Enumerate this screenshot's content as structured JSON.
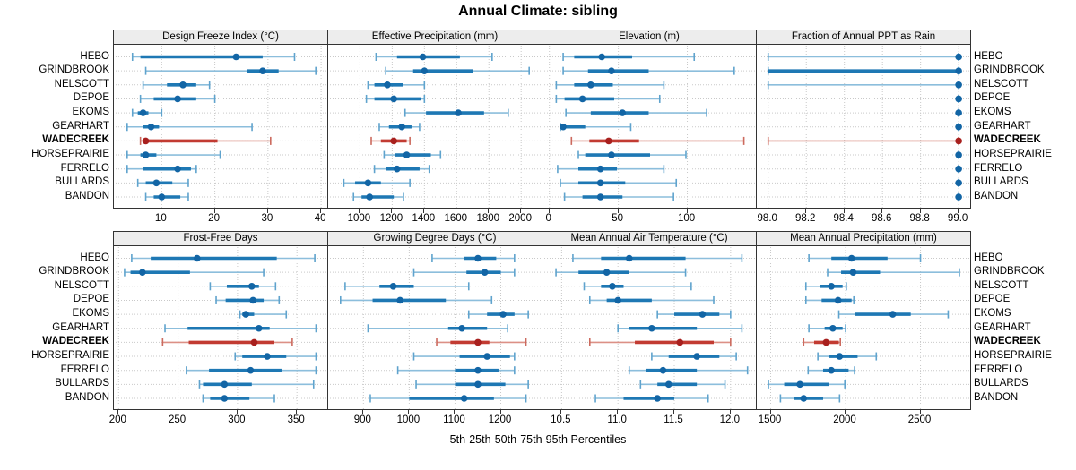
{
  "title": "Annual Climate: sibling",
  "caption": "5th-25th-50th-75th-95th Percentiles",
  "sites": [
    "HEBO",
    "GRINDBROOK",
    "NELSCOTT",
    "DEPOE",
    "EKOMS",
    "GEARHART",
    "WADECREEK",
    "HORSEPRAIRIE",
    "FERRELO",
    "BULLARDS",
    "BANDON"
  ],
  "highlighted_site": "WADECREEK",
  "percentiles": [
    5,
    25,
    50,
    75,
    95
  ],
  "colors": {
    "series_bar": "#1E78B4",
    "series_median": "#1265A5",
    "series_whisker": "#8CBEDC",
    "series_cap": "#5FA3CD",
    "highlight_bar": "#C23B32",
    "highlight_median": "#A8201E",
    "highlight_whisker": "#DC9086",
    "highlight_cap": "#CC6A5E",
    "grid": "#C9C9C9",
    "strip_bg": "#EDEDED",
    "border": "#333333"
  },
  "chart_data": [
    {
      "type": "interval",
      "row": 0,
      "col": 0,
      "title": "Design Freeze Index (°C)",
      "xlim": [
        1,
        41.5
      ],
      "ticks": [
        10,
        20,
        30,
        40
      ],
      "tick_labels": [
        "10",
        "20",
        "30",
        "40"
      ],
      "series": [
        {
          "name": "HEBO",
          "values": [
            4.5,
            6,
            24,
            29,
            35
          ]
        },
        {
          "name": "GRINDBROOK",
          "values": [
            7,
            26,
            29,
            32,
            39
          ]
        },
        {
          "name": "NELSCOTT",
          "values": [
            6.5,
            11,
            14,
            16.5,
            19
          ]
        },
        {
          "name": "DEPOE",
          "values": [
            6,
            8.5,
            13,
            16.5,
            20
          ]
        },
        {
          "name": "EKOMS",
          "values": [
            4.5,
            5.5,
            6.5,
            7.5,
            10
          ]
        },
        {
          "name": "GEARHART",
          "values": [
            3.5,
            6.5,
            8,
            9.5,
            27
          ]
        },
        {
          "name": "WADECREEK",
          "values": [
            6,
            6.5,
            7,
            20.5,
            30.5
          ]
        },
        {
          "name": "HORSEPRAIRIE",
          "values": [
            3.5,
            6,
            7,
            9,
            21
          ]
        },
        {
          "name": "FERRELO",
          "values": [
            3.5,
            6.5,
            13,
            15.5,
            16.5
          ]
        },
        {
          "name": "BULLARDS",
          "values": [
            5.5,
            7,
            9,
            12,
            15
          ]
        },
        {
          "name": "BANDON",
          "values": [
            7,
            8.5,
            10,
            13.5,
            15
          ]
        }
      ]
    },
    {
      "type": "interval",
      "row": 0,
      "col": 1,
      "title": "Effective Precipitation (mm)",
      "xlim": [
        803,
        2138
      ],
      "ticks": [
        1000,
        1200,
        1400,
        1600,
        1800,
        2000
      ],
      "tick_labels": [
        "1000",
        "1200",
        "1400",
        "1600",
        "1800",
        "2000"
      ],
      "series": [
        {
          "name": "HEBO",
          "values": [
            1100,
            1230,
            1390,
            1620,
            1820
          ]
        },
        {
          "name": "GRINDBROOK",
          "values": [
            1160,
            1330,
            1400,
            1700,
            2050
          ]
        },
        {
          "name": "NELSCOTT",
          "values": [
            1050,
            1090,
            1170,
            1270,
            1400
          ]
        },
        {
          "name": "DEPOE",
          "values": [
            1040,
            1090,
            1210,
            1380,
            1400
          ]
        },
        {
          "name": "EKOMS",
          "values": [
            1280,
            1410,
            1610,
            1770,
            1920
          ]
        },
        {
          "name": "GEARHART",
          "values": [
            1120,
            1180,
            1260,
            1320,
            1370
          ]
        },
        {
          "name": "WADECREEK",
          "values": [
            1070,
            1130,
            1210,
            1290,
            1310
          ]
        },
        {
          "name": "HORSEPRAIRIE",
          "values": [
            1150,
            1220,
            1290,
            1440,
            1500
          ]
        },
        {
          "name": "FERRELO",
          "values": [
            1090,
            1160,
            1230,
            1370,
            1430
          ]
        },
        {
          "name": "BULLARDS",
          "values": [
            900,
            970,
            1050,
            1130,
            1310
          ]
        },
        {
          "name": "BANDON",
          "values": [
            960,
            1010,
            1060,
            1210,
            1270
          ]
        }
      ]
    },
    {
      "type": "interval",
      "row": 0,
      "col": 2,
      "title": "Elevation (m)",
      "xlim": [
        -5,
        151
      ],
      "ticks": [
        0,
        50,
        100
      ],
      "tick_labels": [
        "0",
        "50",
        "100"
      ],
      "series": [
        {
          "name": "HEBO",
          "values": [
            10,
            18,
            38,
            60,
            105
          ]
        },
        {
          "name": "GRINDBROOK",
          "values": [
            10,
            28,
            45,
            72,
            134
          ]
        },
        {
          "name": "NELSCOTT",
          "values": [
            5,
            18,
            30,
            46,
            83
          ]
        },
        {
          "name": "DEPOE",
          "values": [
            5,
            11,
            24,
            47,
            80
          ]
        },
        {
          "name": "EKOMS",
          "values": [
            12,
            30,
            53,
            72,
            114
          ]
        },
        {
          "name": "GEARHART",
          "values": [
            8,
            9,
            10,
            26,
            59
          ]
        },
        {
          "name": "WADECREEK",
          "values": [
            16,
            29,
            43,
            65,
            141
          ]
        },
        {
          "name": "HORSEPRAIRIE",
          "values": [
            21,
            26,
            45,
            73,
            99
          ]
        },
        {
          "name": "FERRELO",
          "values": [
            6,
            21,
            37,
            49,
            83
          ]
        },
        {
          "name": "BULLARDS",
          "values": [
            8,
            21,
            37,
            55,
            92
          ]
        },
        {
          "name": "BANDON",
          "values": [
            11,
            24,
            37,
            53,
            90
          ]
        }
      ]
    },
    {
      "type": "interval",
      "row": 0,
      "col": 3,
      "title": "Fraction of Annual PPT as Rain",
      "xlim": [
        97.94,
        99.07
      ],
      "ticks": [
        98.0,
        98.2,
        98.4,
        98.6,
        98.8,
        99.0
      ],
      "tick_labels": [
        "98.0",
        "98.2",
        "98.4",
        "98.6",
        "98.8",
        "99.0"
      ],
      "series": [
        {
          "name": "HEBO",
          "values": [
            98,
            99,
            99,
            99,
            99
          ]
        },
        {
          "name": "GRINDBROOK",
          "values": [
            98,
            98,
            99,
            99,
            99
          ]
        },
        {
          "name": "NELSCOTT",
          "values": [
            98,
            99,
            99,
            99,
            99
          ]
        },
        {
          "name": "DEPOE",
          "values": [
            99,
            99,
            99,
            99,
            99
          ]
        },
        {
          "name": "EKOMS",
          "values": [
            99,
            99,
            99,
            99,
            99
          ]
        },
        {
          "name": "GEARHART",
          "values": [
            99,
            99,
            99,
            99,
            99
          ]
        },
        {
          "name": "WADECREEK",
          "values": [
            98,
            99,
            99,
            99,
            99
          ]
        },
        {
          "name": "HORSEPRAIRIE",
          "values": [
            99,
            99,
            99,
            99,
            99
          ]
        },
        {
          "name": "FERRELO",
          "values": [
            99,
            99,
            99,
            99,
            99
          ]
        },
        {
          "name": "BULLARDS",
          "values": [
            99,
            99,
            99,
            99,
            99
          ]
        },
        {
          "name": "BANDON",
          "values": [
            99,
            99,
            99,
            99,
            99
          ]
        }
      ]
    },
    {
      "type": "interval",
      "row": 1,
      "col": 0,
      "title": "Frost-Free Days",
      "xlim": [
        196,
        377
      ],
      "ticks": [
        200,
        250,
        300,
        350
      ],
      "tick_labels": [
        "200",
        "250",
        "300",
        "350"
      ],
      "series": [
        {
          "name": "HEBO",
          "values": [
            211,
            227,
            266,
            333,
            365
          ]
        },
        {
          "name": "GRINDBROOK",
          "values": [
            205,
            210,
            220,
            260,
            322
          ]
        },
        {
          "name": "NELSCOTT",
          "values": [
            277,
            291,
            312,
            318,
            332
          ]
        },
        {
          "name": "DEPOE",
          "values": [
            282,
            290,
            313,
            322,
            335
          ]
        },
        {
          "name": "EKOMS",
          "values": [
            302,
            304,
            307,
            314,
            341
          ]
        },
        {
          "name": "GEARHART",
          "values": [
            239,
            258,
            318,
            327,
            366
          ]
        },
        {
          "name": "WADECREEK",
          "values": [
            237,
            259,
            314,
            331,
            346
          ]
        },
        {
          "name": "HORSEPRAIRIE",
          "values": [
            298,
            304,
            325,
            341,
            366
          ]
        },
        {
          "name": "FERRELO",
          "values": [
            257,
            276,
            311,
            337,
            366
          ]
        },
        {
          "name": "BULLARDS",
          "values": [
            268,
            271,
            289,
            312,
            364
          ]
        },
        {
          "name": "BANDON",
          "values": [
            271,
            277,
            289,
            310,
            331
          ]
        }
      ]
    },
    {
      "type": "interval",
      "row": 1,
      "col": 1,
      "title": "Growing Degree Days (°C)",
      "xlim": [
        823,
        1293
      ],
      "ticks": [
        900,
        1000,
        1100,
        1200
      ],
      "tick_labels": [
        "900",
        "1000",
        "1100",
        "1200"
      ],
      "series": [
        {
          "name": "HEBO",
          "values": [
            1050,
            1120,
            1150,
            1190,
            1230
          ]
        },
        {
          "name": "GRINDBROOK",
          "values": [
            1010,
            1125,
            1165,
            1200,
            1230
          ]
        },
        {
          "name": "NELSCOTT",
          "values": [
            860,
            935,
            965,
            1010,
            1130
          ]
        },
        {
          "name": "DEPOE",
          "values": [
            850,
            920,
            980,
            1080,
            1180
          ]
        },
        {
          "name": "EKOMS",
          "values": [
            1130,
            1170,
            1205,
            1230,
            1260
          ]
        },
        {
          "name": "GEARHART",
          "values": [
            910,
            1085,
            1115,
            1170,
            1215
          ]
        },
        {
          "name": "WADECREEK",
          "values": [
            1060,
            1090,
            1150,
            1175,
            1255
          ]
        },
        {
          "name": "HORSEPRAIRIE",
          "values": [
            1010,
            1110,
            1170,
            1220,
            1230
          ]
        },
        {
          "name": "FERRELO",
          "values": [
            975,
            1100,
            1150,
            1195,
            1230
          ]
        },
        {
          "name": "BULLARDS",
          "values": [
            1015,
            1100,
            1150,
            1210,
            1260
          ]
        },
        {
          "name": "BANDON",
          "values": [
            915,
            1000,
            1120,
            1185,
            1255
          ]
        }
      ]
    },
    {
      "type": "interval",
      "row": 1,
      "col": 2,
      "title": "Mean Annual Air Temperature (°C)",
      "xlim": [
        10.33,
        12.24
      ],
      "ticks": [
        10.5,
        11.0,
        11.5,
        12.0
      ],
      "tick_labels": [
        "10.5",
        "11.0",
        "11.5",
        "12.0"
      ],
      "series": [
        {
          "name": "HEBO",
          "values": [
            10.6,
            10.85,
            11.1,
            11.6,
            12.1
          ]
        },
        {
          "name": "GRINDBROOK",
          "values": [
            10.45,
            10.65,
            10.9,
            11.1,
            11.6
          ]
        },
        {
          "name": "NELSCOTT",
          "values": [
            10.7,
            10.85,
            10.95,
            11.05,
            11.65
          ]
        },
        {
          "name": "DEPOE",
          "values": [
            10.75,
            10.9,
            11.0,
            11.3,
            11.85
          ]
        },
        {
          "name": "EKOMS",
          "values": [
            11.35,
            11.5,
            11.75,
            11.9,
            12.0
          ]
        },
        {
          "name": "GEARHART",
          "values": [
            11.0,
            11.1,
            11.3,
            11.7,
            12.1
          ]
        },
        {
          "name": "WADECREEK",
          "values": [
            10.75,
            11.15,
            11.55,
            11.85,
            12.0
          ]
        },
        {
          "name": "HORSEPRAIRIE",
          "values": [
            11.3,
            11.45,
            11.7,
            11.9,
            12.05
          ]
        },
        {
          "name": "FERRELO",
          "values": [
            11.1,
            11.25,
            11.4,
            11.7,
            12.15
          ]
        },
        {
          "name": "BULLARDS",
          "values": [
            11.2,
            11.35,
            11.45,
            11.7,
            11.95
          ]
        },
        {
          "name": "BANDON",
          "values": [
            10.8,
            11.05,
            11.35,
            11.5,
            11.8
          ]
        }
      ]
    },
    {
      "type": "interval",
      "row": 1,
      "col": 3,
      "title": "Mean Annual Precipitation (mm)",
      "xlim": [
        1407,
        2844
      ],
      "ticks": [
        1500,
        2000,
        2500
      ],
      "tick_labels": [
        "1500",
        "2000",
        "2500"
      ],
      "series": [
        {
          "name": "HEBO",
          "values": [
            1755,
            1905,
            2040,
            2280,
            2500
          ]
        },
        {
          "name": "GRINDBROOK",
          "values": [
            1880,
            1970,
            2050,
            2230,
            2760
          ]
        },
        {
          "name": "NELSCOTT",
          "values": [
            1735,
            1830,
            1905,
            1980,
            2005
          ]
        },
        {
          "name": "DEPOE",
          "values": [
            1735,
            1840,
            1950,
            2040,
            2055
          ]
        },
        {
          "name": "EKOMS",
          "values": [
            1955,
            2060,
            2315,
            2435,
            2685
          ]
        },
        {
          "name": "GEARHART",
          "values": [
            1755,
            1860,
            1915,
            1980,
            2000
          ]
        },
        {
          "name": "WADECREEK",
          "values": [
            1720,
            1790,
            1870,
            1955,
            1965
          ]
        },
        {
          "name": "HORSEPRAIRIE",
          "values": [
            1815,
            1890,
            1960,
            2080,
            2205
          ]
        },
        {
          "name": "FERRELO",
          "values": [
            1750,
            1850,
            1905,
            2020,
            2060
          ]
        },
        {
          "name": "BULLARDS",
          "values": [
            1485,
            1590,
            1695,
            1890,
            1995
          ]
        },
        {
          "name": "BANDON",
          "values": [
            1565,
            1655,
            1720,
            1850,
            1960
          ]
        }
      ]
    }
  ]
}
